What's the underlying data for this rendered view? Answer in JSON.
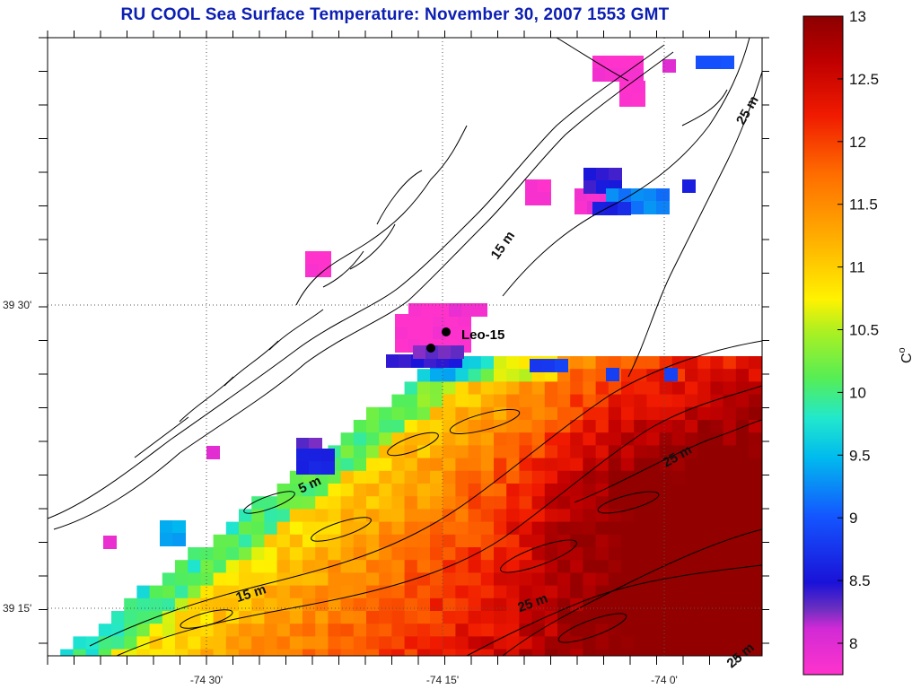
{
  "title": "RU COOL  Sea Surface Temperature:  November 30, 2007 1553 GMT",
  "axes": {
    "longitude_labels": [
      "-74 30'",
      "-74 15'",
      "-74 0'"
    ],
    "latitude_labels": [
      "39 30'",
      "39 15'"
    ]
  },
  "colorbar": {
    "ticks": [
      "13",
      "12.5",
      "12",
      "11.5",
      "11",
      "10.5",
      "10",
      "9.5",
      "9",
      "8.5",
      "8"
    ],
    "unit_main": "C",
    "unit_super": "o",
    "range": [
      7.75,
      13
    ]
  },
  "map": {
    "station_label": "Leo-15",
    "isobath_labels": [
      "25 m",
      "15 m",
      "25 m",
      "5 m",
      "15 m",
      "25 m",
      "25 m"
    ],
    "colors": {
      "land_outline": "#000000",
      "no_data": "#ffffff",
      "station_marker": "#000000"
    }
  }
}
